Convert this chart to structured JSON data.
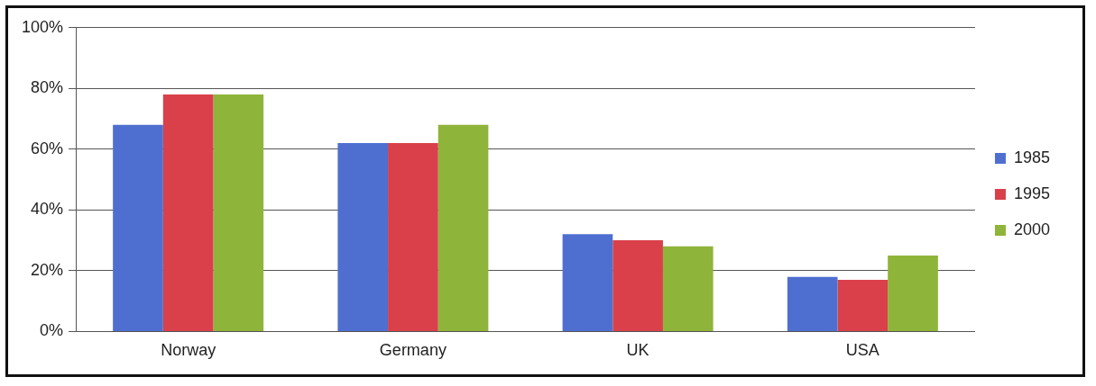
{
  "chart_data": {
    "type": "bar",
    "categories": [
      "Norway",
      "Germany",
      "UK",
      "USA"
    ],
    "series": [
      {
        "name": "1985",
        "color": "#4f6fd0",
        "values": [
          68,
          62,
          32,
          18
        ]
      },
      {
        "name": "1995",
        "color": "#d9404a",
        "values": [
          78,
          62,
          30,
          17
        ]
      },
      {
        "name": "2000",
        "color": "#8fb43a",
        "values": [
          78,
          68,
          28,
          25
        ]
      }
    ],
    "ylim": [
      0,
      100
    ],
    "yticks": [
      {
        "value": 0,
        "label": "0%"
      },
      {
        "value": 20,
        "label": "20%"
      },
      {
        "value": 40,
        "label": "40%"
      },
      {
        "value": 60,
        "label": "60%"
      },
      {
        "value": 80,
        "label": "80%"
      },
      {
        "value": 100,
        "label": "100%"
      }
    ],
    "grid": "y",
    "legend": "right"
  }
}
